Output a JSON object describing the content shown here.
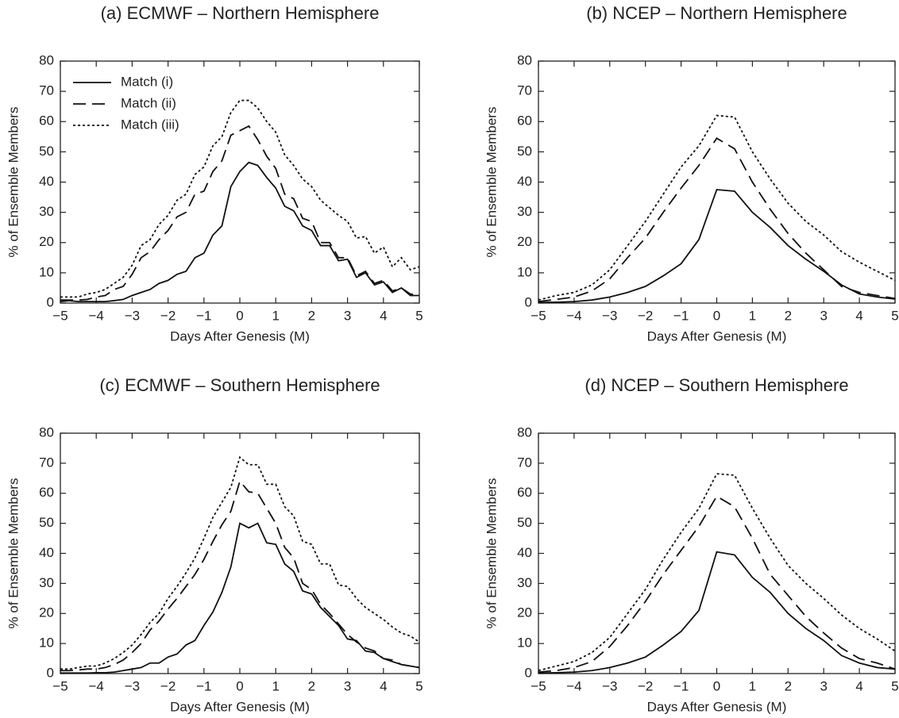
{
  "chart_data": [
    {
      "type": "line",
      "title": "(a) ECMWF – Northern Hemisphere",
      "xlabel": "Days After Genesis (M)",
      "ylabel": "% of Ensemble Members",
      "x": [
        -5,
        -4.75,
        -4.5,
        -4.25,
        -4,
        -3.75,
        -3.5,
        -3.25,
        -3,
        -2.75,
        -2.5,
        -2.25,
        -2,
        -1.75,
        -1.5,
        -1.25,
        -1,
        -0.75,
        -0.5,
        -0.25,
        0,
        0.25,
        0.5,
        0.75,
        1,
        1.25,
        1.5,
        1.75,
        2,
        2.25,
        2.5,
        2.75,
        3,
        3.25,
        3.5,
        3.75,
        4,
        4.25,
        4.5,
        4.75,
        5
      ],
      "series": [
        {
          "name": "Match (i)",
          "color": "#111111",
          "dash": "solid",
          "values": [
            0.5,
            0.8,
            0.5,
            0.5,
            0.5,
            0.5,
            0.8,
            1.2,
            2.5,
            3.5,
            4.5,
            6.5,
            7.5,
            9.5,
            10.5,
            15,
            16.5,
            22.5,
            25.5,
            38.5,
            43.5,
            46.5,
            45.5,
            41.5,
            38,
            32,
            30.5,
            25.5,
            24,
            19,
            19,
            14,
            14.5,
            8.5,
            10,
            6,
            7,
            3.5,
            5,
            2.5,
            2.5
          ]
        },
        {
          "name": "Match (ii)",
          "color": "#111111",
          "dash": "dashed",
          "values": [
            1,
            1,
            1,
            1.2,
            2,
            2.5,
            4.5,
            5.5,
            9.5,
            15,
            17,
            21,
            24,
            28.5,
            30,
            36,
            37,
            43.5,
            47,
            55.5,
            57,
            58.5,
            54,
            48.5,
            44.5,
            36,
            34.5,
            28,
            27,
            20,
            20,
            15,
            15,
            9,
            10.5,
            6.5,
            7.5,
            4,
            5,
            3,
            2.5
          ]
        },
        {
          "name": "Match (iii)",
          "color": "#111111",
          "dash": "dotted",
          "values": [
            2,
            2,
            2,
            3,
            3.5,
            4.5,
            6.5,
            8.5,
            12.5,
            19,
            21,
            26,
            29,
            34,
            36,
            42.5,
            45,
            52,
            55,
            63,
            67,
            67,
            64.5,
            60,
            56.5,
            49,
            45.5,
            41,
            38.5,
            34,
            31.5,
            29,
            27,
            21.5,
            22,
            16.5,
            18.5,
            12,
            15,
            11,
            12
          ]
        }
      ],
      "xlim": [
        -5,
        5
      ],
      "xticks": [
        {
          "value": -5,
          "label": "−5"
        },
        {
          "value": -4,
          "label": "−4"
        },
        {
          "value": -3,
          "label": "−3"
        },
        {
          "value": -2,
          "label": "−2"
        },
        {
          "value": -1,
          "label": "−1"
        },
        0,
        1,
        2,
        3,
        4,
        5
      ],
      "ylim": [
        0,
        80
      ],
      "yticks": [
        0,
        10,
        20,
        30,
        40,
        50,
        60,
        70,
        80
      ],
      "legend": "upper left"
    },
    {
      "type": "line",
      "title": "(b) NCEP – Northern Hemisphere",
      "xlabel": "Days After Genesis (M)",
      "ylabel": "% of Ensemble Members",
      "x": [
        -5,
        -4.5,
        -4,
        -3.5,
        -3,
        -2.5,
        -2,
        -1.5,
        -1,
        -0.5,
        0,
        0.5,
        1,
        1.5,
        2,
        2.5,
        3,
        3.5,
        4,
        4.5,
        5
      ],
      "series": [
        {
          "color": "#111111",
          "dash": "solid",
          "values": [
            0.2,
            0.3,
            0.5,
            1,
            2,
            3.5,
            5.5,
            9,
            13,
            21,
            37.5,
            37,
            30,
            25,
            19,
            14.5,
            10.5,
            6,
            3,
            2,
            1.3
          ]
        },
        {
          "color": "#111111",
          "dash": "dashed",
          "values": [
            0.5,
            1.2,
            2,
            4,
            8,
            15,
            21.5,
            30,
            38,
            45.5,
            54.5,
            51,
            40,
            31,
            23,
            16.5,
            11,
            5.5,
            3.5,
            2.5,
            1.5
          ]
        },
        {
          "color": "#111111",
          "dash": "dotted",
          "values": [
            1,
            2.5,
            3.5,
            6,
            11,
            19,
            27,
            36,
            45,
            52,
            62,
            61.5,
            50,
            41,
            33,
            27,
            22.5,
            17,
            13.5,
            10.5,
            7.5
          ]
        }
      ],
      "xlim": [
        -5,
        5
      ],
      "xticks": [
        {
          "value": -5,
          "label": "−5"
        },
        {
          "value": -4,
          "label": "−4"
        },
        {
          "value": -3,
          "label": "−3"
        },
        {
          "value": -2,
          "label": "−2"
        },
        {
          "value": -1,
          "label": "−1"
        },
        0,
        1,
        2,
        3,
        4,
        5
      ],
      "ylim": [
        0,
        80
      ],
      "yticks": [
        0,
        10,
        20,
        30,
        40,
        50,
        60,
        70,
        80
      ]
    },
    {
      "type": "line",
      "title": "(c) ECMWF – Southern Hemisphere",
      "xlabel": "Days After Genesis (M)",
      "ylabel": "% of Ensemble Members",
      "x": [
        -5,
        -4.75,
        -4.5,
        -4.25,
        -4,
        -3.75,
        -3.5,
        -3.25,
        -3,
        -2.75,
        -2.5,
        -2.25,
        -2,
        -1.75,
        -1.5,
        -1.25,
        -1,
        -0.75,
        -0.5,
        -0.25,
        0,
        0.25,
        0.5,
        0.75,
        1,
        1.25,
        1.5,
        1.75,
        2,
        2.25,
        2.5,
        2.75,
        3,
        3.25,
        3.5,
        3.75,
        4,
        4.25,
        4.5,
        4.75,
        5
      ],
      "series": [
        {
          "color": "#111111",
          "dash": "solid",
          "values": [
            0.2,
            0.2,
            0.2,
            0.2,
            0.3,
            0.3,
            0.5,
            1,
            1.5,
            2,
            3.5,
            3.5,
            5.5,
            6.5,
            9.5,
            11,
            16,
            20.5,
            27,
            35.5,
            50,
            48.5,
            50,
            43.5,
            43,
            36.5,
            34,
            27.5,
            26.5,
            22,
            19,
            16,
            11.5,
            11,
            7.5,
            7,
            5,
            4,
            3,
            2.5,
            2
          ]
        },
        {
          "color": "#111111",
          "dash": "dashed",
          "values": [
            1,
            1,
            1.2,
            1.5,
            1.5,
            2,
            3,
            4.5,
            7,
            10,
            14.5,
            17.5,
            21.5,
            25,
            29,
            33,
            38,
            44,
            49.5,
            54,
            64,
            60.5,
            60,
            55,
            50,
            42,
            38.5,
            30,
            28,
            23,
            20,
            16.5,
            13,
            10.5,
            8.5,
            7.5,
            5,
            4.5,
            3,
            2.5,
            2
          ]
        },
        {
          "color": "#111111",
          "dash": "dotted",
          "values": [
            1.5,
            1.5,
            2,
            2.5,
            2.5,
            3.5,
            5,
            7,
            9.5,
            13,
            17,
            20,
            25,
            29,
            33.5,
            38.5,
            45,
            52,
            57,
            62,
            72,
            69.5,
            69.5,
            63,
            63,
            55.5,
            52.5,
            44,
            43,
            36.5,
            36.5,
            29.5,
            29,
            25,
            22,
            20,
            18,
            15.5,
            13.5,
            12.5,
            10.5
          ]
        }
      ],
      "xlim": [
        -5,
        5
      ],
      "xticks": [
        {
          "value": -5,
          "label": "−5"
        },
        {
          "value": -4,
          "label": "−4"
        },
        {
          "value": -3,
          "label": "−3"
        },
        {
          "value": -2,
          "label": "−2"
        },
        {
          "value": -1,
          "label": "−1"
        },
        0,
        1,
        2,
        3,
        4,
        5
      ],
      "ylim": [
        0,
        80
      ],
      "yticks": [
        0,
        10,
        20,
        30,
        40,
        50,
        60,
        70,
        80
      ]
    },
    {
      "type": "line",
      "title": "(d) NCEP – Southern Hemisphere",
      "xlabel": "Days After Genesis (M)",
      "ylabel": "% of Ensemble Members",
      "x": [
        -5,
        -4.5,
        -4,
        -3.5,
        -3,
        -2.5,
        -2,
        -1.5,
        -1,
        -0.5,
        0,
        0.5,
        1,
        1.5,
        2,
        2.5,
        3,
        3.5,
        4,
        4.5,
        5
      ],
      "series": [
        {
          "color": "#111111",
          "dash": "solid",
          "values": [
            0.2,
            0.3,
            0.5,
            1,
            2,
            3.5,
            5.5,
            9.5,
            14,
            21,
            40.5,
            39.5,
            32,
            27,
            20,
            15,
            11,
            6,
            3.5,
            2,
            1.5
          ]
        },
        {
          "color": "#111111",
          "dash": "dashed",
          "values": [
            0.5,
            1,
            2,
            4,
            9,
            16,
            24,
            33,
            41,
            49,
            59,
            55.5,
            45,
            33,
            26,
            19,
            13.5,
            8.5,
            5,
            3.5,
            1.5
          ]
        },
        {
          "color": "#111111",
          "dash": "dotted",
          "values": [
            1,
            2.5,
            4,
            7,
            12,
            20,
            28,
            38,
            47,
            55,
            66.5,
            66,
            55,
            45,
            36,
            30,
            25,
            19.5,
            15,
            11.5,
            7.5
          ]
        }
      ],
      "xlim": [
        -5,
        5
      ],
      "xticks": [
        {
          "value": -5,
          "label": "−5"
        },
        {
          "value": -4,
          "label": "−4"
        },
        {
          "value": -3,
          "label": "−3"
        },
        {
          "value": -2,
          "label": "−2"
        },
        {
          "value": -1,
          "label": "−1"
        },
        0,
        1,
        2,
        3,
        4,
        5
      ],
      "ylim": [
        0,
        80
      ],
      "yticks": [
        0,
        10,
        20,
        30,
        40,
        50,
        60,
        70,
        80
      ]
    }
  ]
}
